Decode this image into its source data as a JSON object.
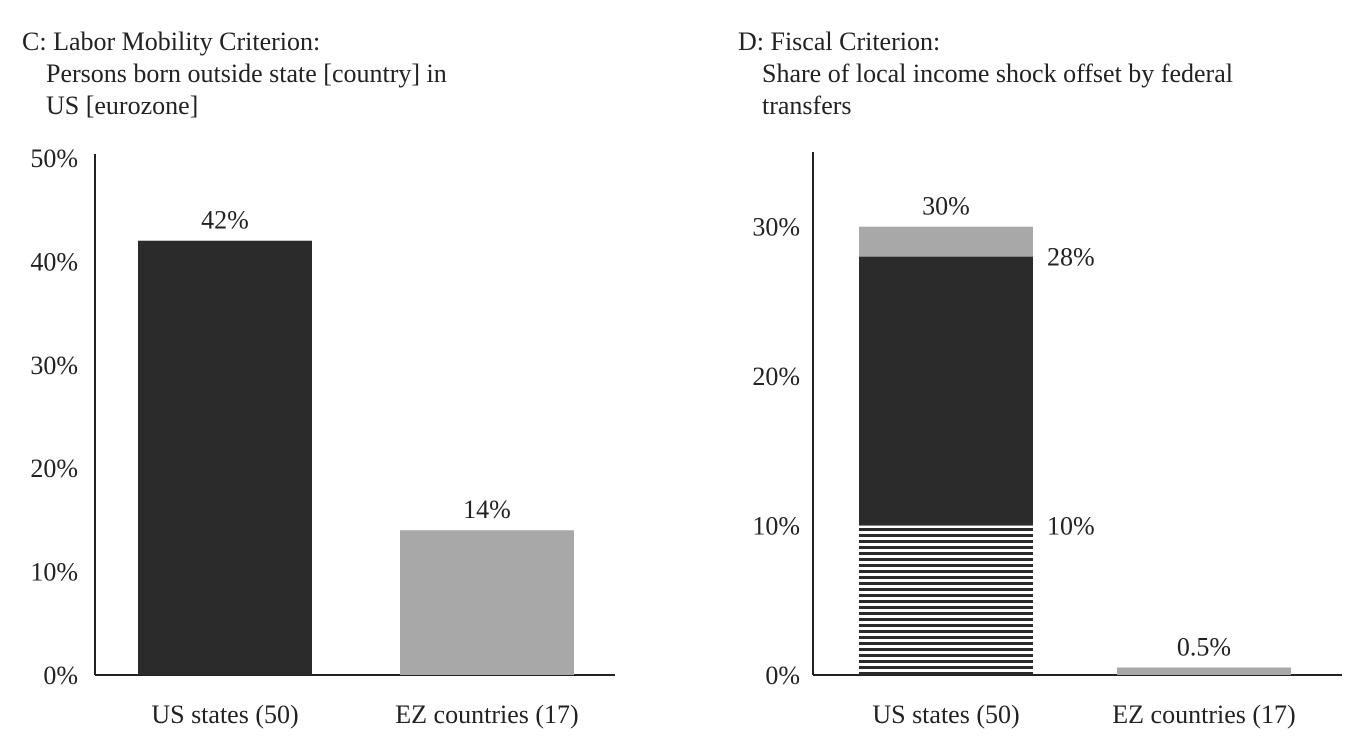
{
  "chart_data": [
    {
      "type": "bar",
      "title": "C: Labor Mobility Criterion:",
      "subtitle": [
        "Persons born outside state [country] in",
        "US [eurozone]"
      ],
      "categories": [
        "US states (50)",
        "EZ countries (17)"
      ],
      "values": [
        42,
        14
      ],
      "data_labels": [
        "42%",
        "14%"
      ],
      "bar_colors": [
        "#2b2b2b",
        "#a8a8a8"
      ],
      "ylim": [
        0,
        50
      ],
      "yticks": [
        0,
        10,
        20,
        30,
        40,
        50
      ],
      "ytick_labels": [
        "0%",
        "10%",
        "20%",
        "30%",
        "40%",
        "50%"
      ],
      "xlabel": "",
      "ylabel": "",
      "grid": false
    },
    {
      "type": "bar",
      "stacked": true,
      "title": "D: Fiscal Criterion:",
      "subtitle": [
        "Share of local income shock offset by federal",
        "transfers"
      ],
      "categories": [
        "US states (50)",
        "EZ countries (17)"
      ],
      "series": [
        {
          "values": [
            10,
            0
          ],
          "color": "#2b2b2b",
          "pattern": "horizontal-stripes"
        },
        {
          "values": [
            18,
            0
          ],
          "color": "#2b2b2b",
          "pattern": "solid"
        },
        {
          "values": [
            2,
            0.5
          ],
          "color": "#a8a8a8",
          "pattern": "solid"
        }
      ],
      "data_labels": [
        {
          "category": 0,
          "value": 30,
          "text": "30%",
          "position": "top"
        },
        {
          "category": 0,
          "value": 28,
          "text": "28%",
          "position": "right"
        },
        {
          "category": 0,
          "value": 10,
          "text": "10%",
          "position": "right"
        },
        {
          "category": 1,
          "value": 0.5,
          "text": "0.5%",
          "position": "top"
        }
      ],
      "ylim": [
        0,
        35
      ],
      "yticks": [
        0,
        10,
        20,
        30
      ],
      "ytick_labels": [
        "0%",
        "10%",
        "20%",
        "30%"
      ],
      "xlabel": "",
      "ylabel": "",
      "grid": false
    }
  ]
}
